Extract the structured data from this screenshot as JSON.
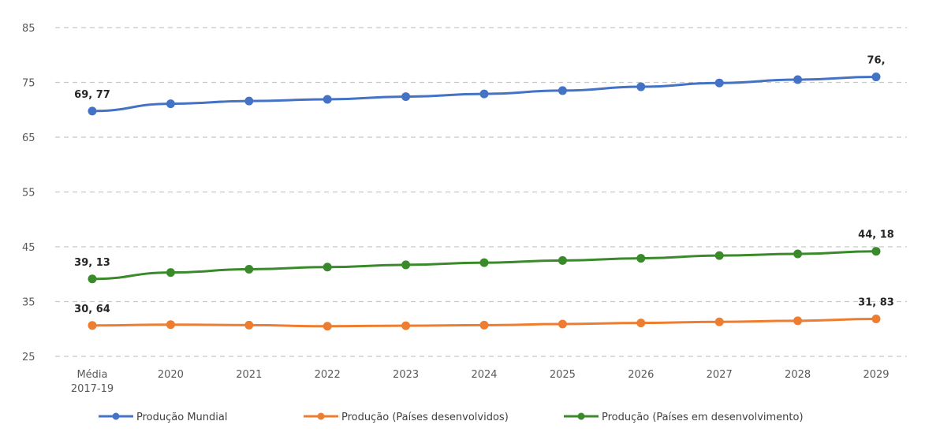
{
  "chart_data": {
    "type": "line",
    "categories": [
      [
        "Média",
        "2017-19"
      ],
      [
        "2020"
      ],
      [
        "2021"
      ],
      [
        "2022"
      ],
      [
        "2023"
      ],
      [
        "2024"
      ],
      [
        "2025"
      ],
      [
        "2026"
      ],
      [
        "2027"
      ],
      [
        "2028"
      ],
      [
        "2029"
      ]
    ],
    "title": "",
    "xlabel": "",
    "ylabel": "",
    "ylim": [
      25,
      85
    ],
    "yticks": [
      "25",
      "35",
      "45",
      "55",
      "65",
      "75",
      "85"
    ],
    "grid": true,
    "legend_position": "bottom",
    "series": [
      {
        "name": "Produção Mundial",
        "color": "#4472c4",
        "values": [
          69.77,
          71.1,
          71.6,
          71.9,
          72.4,
          72.9,
          73.5,
          74.2,
          74.9,
          75.5,
          76.0
        ],
        "labels": [
          {
            "index": 0,
            "text": "69, 77"
          },
          {
            "index": 10,
            "text": "76,"
          }
        ]
      },
      {
        "name": "Produção (Países desenvolvidos)",
        "color": "#ed7d31",
        "values": [
          30.64,
          30.8,
          30.7,
          30.5,
          30.6,
          30.7,
          30.9,
          31.1,
          31.3,
          31.5,
          31.83
        ],
        "labels": [
          {
            "index": 0,
            "text": "30, 64"
          },
          {
            "index": 10,
            "text": "31, 83"
          }
        ]
      },
      {
        "name": "Produção (Países em desenvolvimento)",
        "color": "#3a8a2c",
        "values": [
          39.13,
          40.3,
          40.9,
          41.3,
          41.7,
          42.1,
          42.5,
          42.9,
          43.4,
          43.7,
          44.18
        ],
        "labels": [
          {
            "index": 0,
            "text": "39, 13"
          },
          {
            "index": 10,
            "text": "44, 18"
          }
        ]
      }
    ]
  }
}
